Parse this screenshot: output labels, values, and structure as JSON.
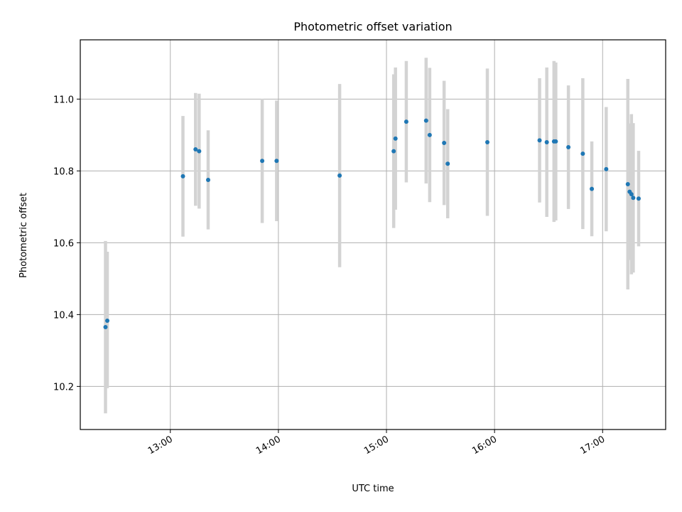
{
  "chart_data": {
    "type": "scatter",
    "title": "Photometric offset variation",
    "xlabel": "UTC time",
    "ylabel": "Photometric offset",
    "xlim": [
      "12:10",
      "17:35"
    ],
    "ylim": [
      10.08,
      11.165
    ],
    "x_ticks": [
      "13:00",
      "14:00",
      "15:00",
      "16:00",
      "17:00"
    ],
    "y_ticks": [
      "10.2",
      "10.4",
      "10.6",
      "10.8",
      "11.0"
    ],
    "grid": true,
    "error_bar_color": "#d3d3d3",
    "marker_color": "#1f77b4",
    "points": [
      {
        "t": "12:24",
        "y": 10.365,
        "lo": 10.125,
        "hi": 10.605
      },
      {
        "t": "12:25",
        "y": 10.383,
        "lo": 10.195,
        "hi": 10.575
      },
      {
        "t": "13:07",
        "y": 10.785,
        "lo": 10.617,
        "hi": 10.953
      },
      {
        "t": "13:14",
        "y": 10.86,
        "lo": 10.703,
        "hi": 11.017
      },
      {
        "t": "13:16",
        "y": 10.855,
        "lo": 10.695,
        "hi": 11.015
      },
      {
        "t": "13:21",
        "y": 10.775,
        "lo": 10.637,
        "hi": 10.913
      },
      {
        "t": "13:51",
        "y": 10.828,
        "lo": 10.655,
        "hi": 11.001
      },
      {
        "t": "13:59",
        "y": 10.828,
        "lo": 10.66,
        "hi": 10.996
      },
      {
        "t": "14:34",
        "y": 10.787,
        "lo": 10.532,
        "hi": 11.042
      },
      {
        "t": "15:04",
        "y": 10.855,
        "lo": 10.641,
        "hi": 11.069
      },
      {
        "t": "15:05",
        "y": 10.89,
        "lo": 10.692,
        "hi": 11.088
      },
      {
        "t": "15:11",
        "y": 10.937,
        "lo": 10.768,
        "hi": 11.106
      },
      {
        "t": "15:22",
        "y": 10.94,
        "lo": 10.765,
        "hi": 11.115
      },
      {
        "t": "15:24",
        "y": 10.9,
        "lo": 10.713,
        "hi": 11.087
      },
      {
        "t": "15:32",
        "y": 10.878,
        "lo": 10.705,
        "hi": 11.051
      },
      {
        "t": "15:34",
        "y": 10.82,
        "lo": 10.668,
        "hi": 10.972
      },
      {
        "t": "15:56",
        "y": 10.88,
        "lo": 10.675,
        "hi": 11.085
      },
      {
        "t": "16:25",
        "y": 10.885,
        "lo": 10.712,
        "hi": 11.058
      },
      {
        "t": "16:29",
        "y": 10.88,
        "lo": 10.672,
        "hi": 11.088
      },
      {
        "t": "16:33",
        "y": 10.882,
        "lo": 10.658,
        "hi": 11.106
      },
      {
        "t": "16:34",
        "y": 10.882,
        "lo": 10.662,
        "hi": 11.102
      },
      {
        "t": "16:41",
        "y": 10.866,
        "lo": 10.694,
        "hi": 11.038
      },
      {
        "t": "16:49",
        "y": 10.848,
        "lo": 10.638,
        "hi": 11.058
      },
      {
        "t": "16:54",
        "y": 10.75,
        "lo": 10.618,
        "hi": 10.882
      },
      {
        "t": "17:02",
        "y": 10.805,
        "lo": 10.632,
        "hi": 10.978
      },
      {
        "t": "17:14",
        "y": 10.763,
        "lo": 10.47,
        "hi": 11.056
      },
      {
        "t": "17:15",
        "y": 10.742,
        "lo": 10.552,
        "hi": 10.932
      },
      {
        "t": "17:16",
        "y": 10.735,
        "lo": 10.512,
        "hi": 10.958
      },
      {
        "t": "17:17",
        "y": 10.725,
        "lo": 10.517,
        "hi": 10.933
      },
      {
        "t": "17:20",
        "y": 10.723,
        "lo": 10.59,
        "hi": 10.856
      }
    ]
  }
}
